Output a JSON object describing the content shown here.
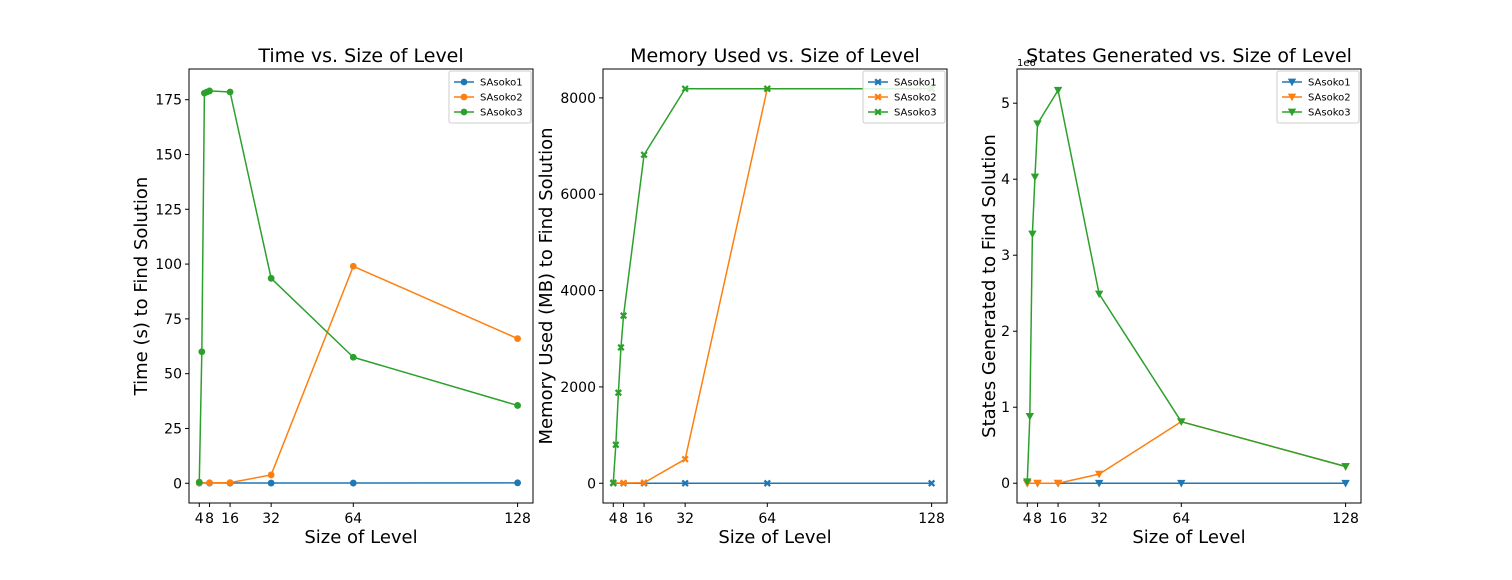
{
  "colors": {
    "SAsoko1": "#1f77b4",
    "SAsoko2": "#ff7f0e",
    "SAsoko3": "#2ca02c"
  },
  "chart_data": [
    {
      "type": "line",
      "title": "Time vs. Size of Level",
      "xlabel": "Size of Level",
      "ylabel": "Time (s) to Find Solution",
      "xlim": [
        0,
        134
      ],
      "ylim": [
        -9,
        189
      ],
      "x_ticks": [
        4,
        8,
        16,
        32,
        64,
        128
      ],
      "x_tick_labels": [
        "4",
        "8",
        "16",
        "32",
        "64",
        "128"
      ],
      "y_ticks": [
        0,
        25,
        50,
        75,
        100,
        125,
        150,
        175
      ],
      "y_tick_labels": [
        "0",
        "25",
        "50",
        "75",
        "100",
        "125",
        "150",
        "175"
      ],
      "y_scale_note": "",
      "marker": "circle",
      "legend_position": "upper right",
      "series": [
        {
          "name": "SAsoko1",
          "x": [
            4,
            8,
            16,
            32,
            64,
            128
          ],
          "y": [
            0.1,
            0.1,
            0.1,
            0.1,
            0.1,
            0.2
          ]
        },
        {
          "name": "SAsoko2",
          "x": [
            4,
            8,
            16,
            32,
            64,
            128
          ],
          "y": [
            0.2,
            0.2,
            0.3,
            3.8,
            99,
            66
          ]
        },
        {
          "name": "SAsoko3",
          "x": [
            4,
            5,
            6,
            7,
            8,
            16,
            32,
            64,
            128
          ],
          "y": [
            0.5,
            60,
            178,
            178.5,
            179,
            178.5,
            93.5,
            57.5,
            35.5
          ]
        }
      ]
    },
    {
      "type": "line",
      "title": "Memory Used vs. Size of Level",
      "xlabel": "Size of Level",
      "ylabel": "Memory Used (MB) to Find Solution",
      "xlim": [
        0,
        134
      ],
      "ylim": [
        -410,
        8600
      ],
      "x_ticks": [
        4,
        8,
        16,
        32,
        64,
        128
      ],
      "x_tick_labels": [
        "4",
        "8",
        "16",
        "32",
        "64",
        "128"
      ],
      "y_ticks": [
        0,
        2000,
        4000,
        6000,
        8000
      ],
      "y_tick_labels": [
        "0",
        "2000",
        "4000",
        "6000",
        "8000"
      ],
      "y_scale_note": "",
      "marker": "x",
      "legend_position": "upper right",
      "series": [
        {
          "name": "SAsoko1",
          "x": [
            4,
            8,
            16,
            32,
            64,
            128
          ],
          "y": [
            0,
            0,
            0,
            0,
            0,
            0
          ]
        },
        {
          "name": "SAsoko2",
          "x": [
            4,
            8,
            16,
            32,
            64,
            128
          ],
          "y": [
            5,
            5,
            10,
            500,
            8190,
            8190
          ]
        },
        {
          "name": "SAsoko3",
          "x": [
            4,
            5,
            6,
            7,
            8,
            16,
            32,
            64,
            128
          ],
          "y": [
            10,
            800,
            1880,
            2820,
            3480,
            6820,
            8190,
            8190,
            8190
          ]
        }
      ]
    },
    {
      "type": "line",
      "title": "States Generated vs. Size of Level",
      "xlabel": "Size of Level",
      "ylabel": "States Generated to Find Solution",
      "xlim": [
        0,
        134
      ],
      "ylim": [
        -0.26,
        5.45
      ],
      "x_ticks": [
        4,
        8,
        16,
        32,
        64,
        128
      ],
      "x_tick_labels": [
        "4",
        "8",
        "16",
        "32",
        "64",
        "128"
      ],
      "y_ticks": [
        0,
        1,
        2,
        3,
        4,
        5
      ],
      "y_tick_labels": [
        "0",
        "1",
        "2",
        "3",
        "4",
        "5"
      ],
      "y_scale_note": "1e6",
      "marker": "triangle-down",
      "legend_position": "upper right",
      "series": [
        {
          "name": "SAsoko1",
          "x": [
            4,
            8,
            16,
            32,
            64,
            128
          ],
          "y": [
            0,
            0,
            0,
            0,
            0,
            0
          ]
        },
        {
          "name": "SAsoko2",
          "x": [
            4,
            8,
            16,
            32,
            64,
            128
          ],
          "y": [
            0,
            0,
            0,
            0.12,
            0.81,
            0.22
          ]
        },
        {
          "name": "SAsoko3",
          "x": [
            4,
            5,
            6,
            7,
            8,
            16,
            32,
            64,
            128
          ],
          "y": [
            0.02,
            0.88,
            3.28,
            4.03,
            4.73,
            5.17,
            2.49,
            0.81,
            0.22
          ]
        }
      ]
    }
  ]
}
